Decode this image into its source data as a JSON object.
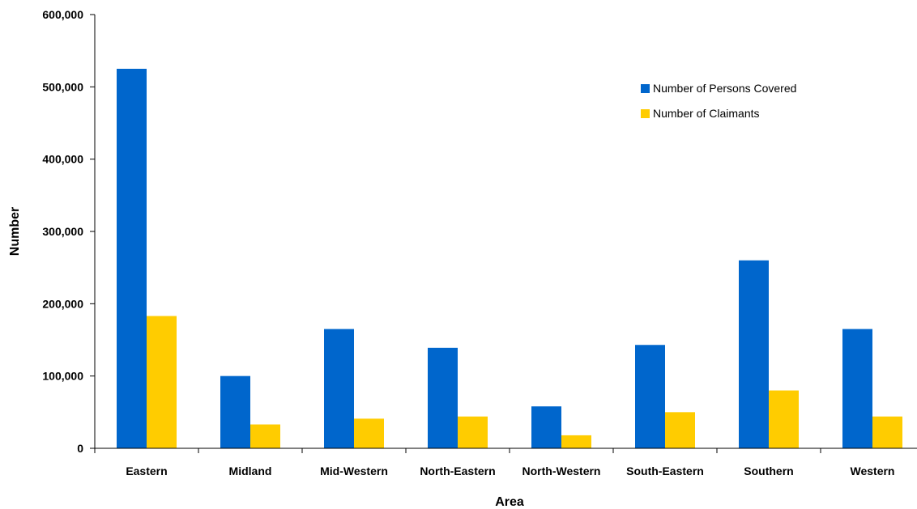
{
  "chart_data": {
    "type": "bar",
    "title": "",
    "xlabel": "Area",
    "ylabel": "Number",
    "ylim": [
      0,
      600000
    ],
    "yticks": [
      0,
      100000,
      200000,
      300000,
      400000,
      500000,
      600000
    ],
    "ytick_labels": [
      "0",
      "100,000",
      "200,000",
      "300,000",
      "400,000",
      "500,000",
      "600,000"
    ],
    "categories": [
      "Eastern",
      "Midland",
      "Mid-Western",
      "North-Eastern",
      "North-Western",
      "South-Eastern",
      "Southern",
      "Western"
    ],
    "series": [
      {
        "name": "Number of Persons Covered",
        "color": "#0066CC",
        "values": [
          525000,
          100000,
          165000,
          139000,
          58000,
          143000,
          260000,
          165000
        ]
      },
      {
        "name": "Number of Claimants",
        "color": "#FFCC00",
        "values": [
          183000,
          33000,
          41000,
          44000,
          18000,
          50000,
          80000,
          44000
        ]
      }
    ],
    "grid": false,
    "legend_position": "top-right"
  }
}
